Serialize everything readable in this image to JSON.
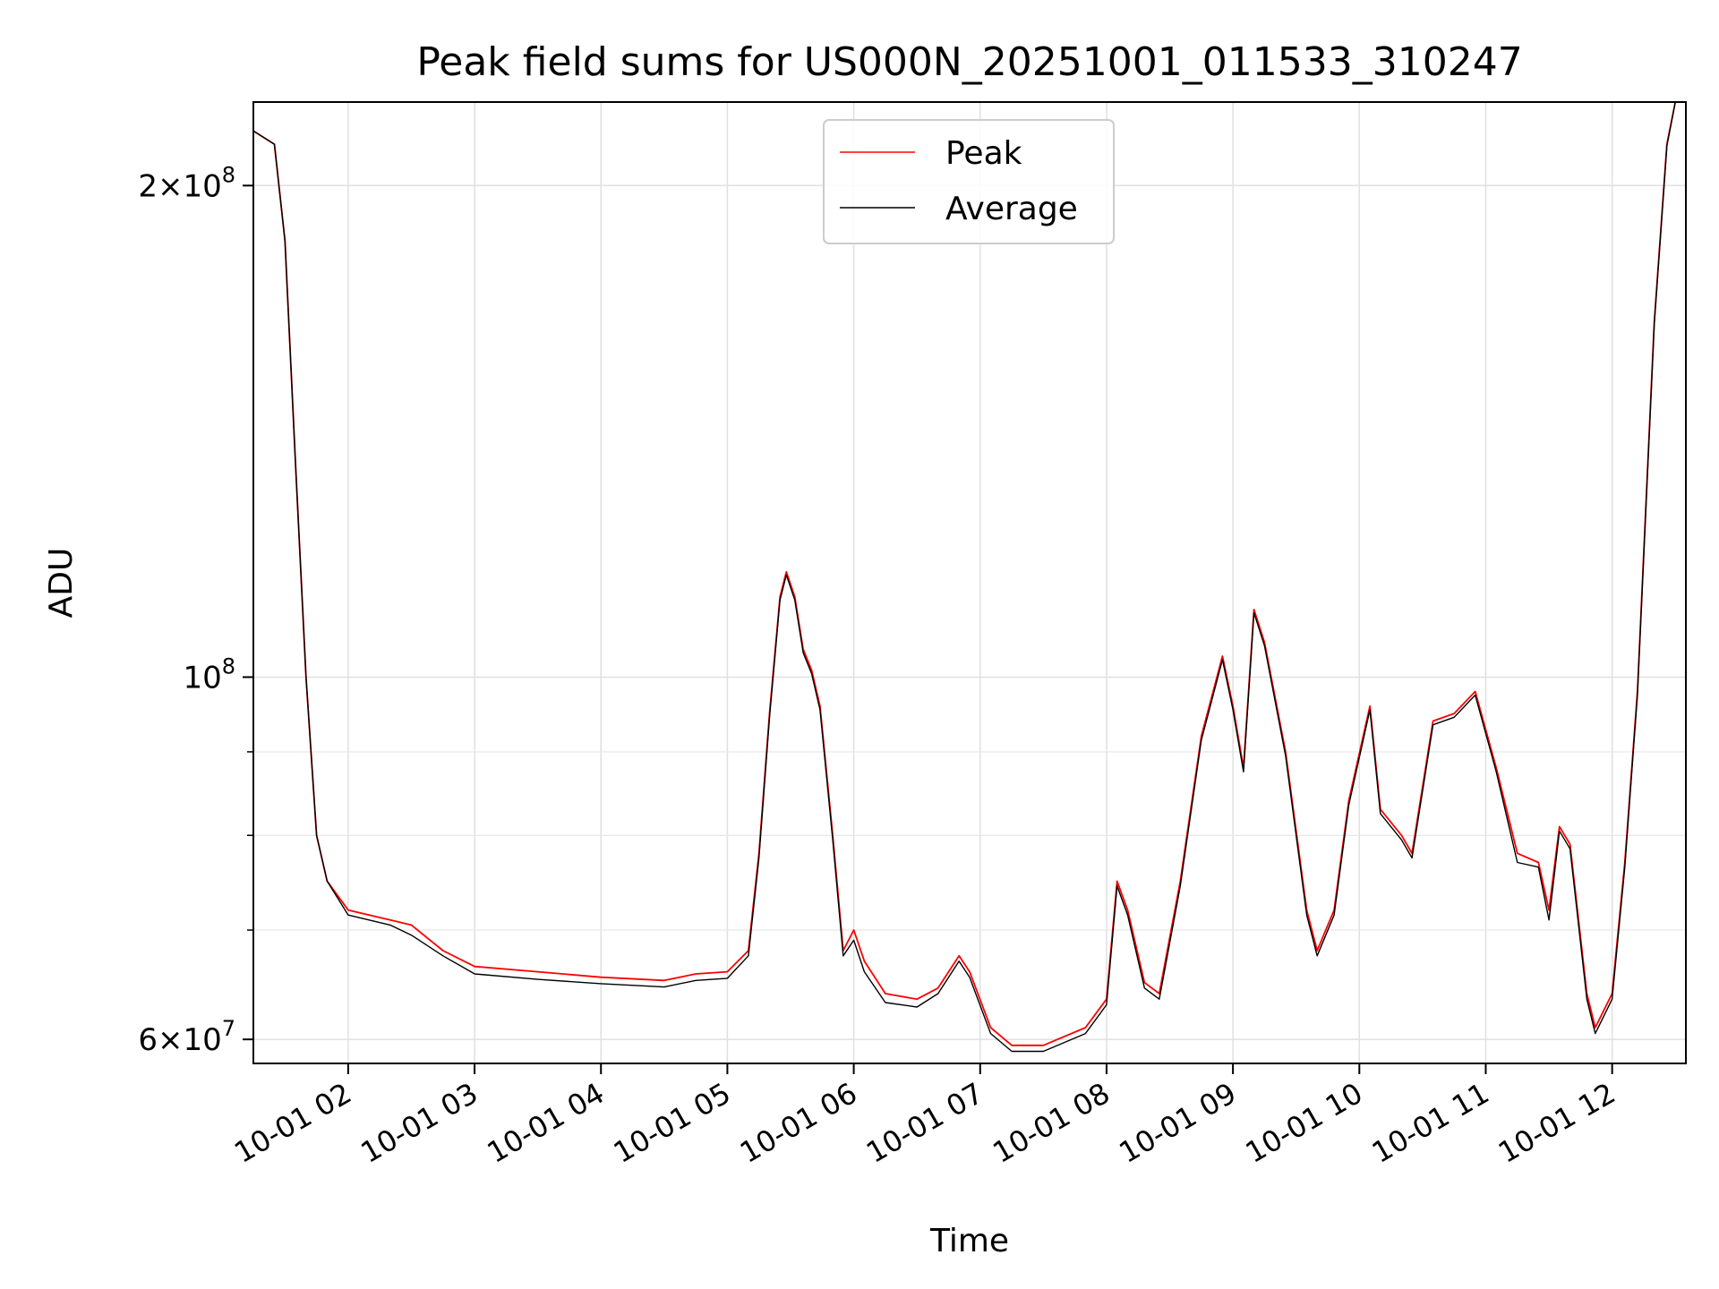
{
  "chart_data": {
    "type": "line",
    "title": "Peak field sums for US000N_20251001_011533_310247",
    "xlabel": "Time",
    "ylabel": "ADU",
    "yscale": "log",
    "grid": true,
    "legend_position": "top-center",
    "xlim": [
      "2025-10-01 01:15",
      "2025-10-01 12:35"
    ],
    "ylim": [
      58000000,
      225000000
    ],
    "x_ticks": [
      {
        "t": "2025-10-01 02:00",
        "label": "10-01 02"
      },
      {
        "t": "2025-10-01 03:00",
        "label": "10-01 03"
      },
      {
        "t": "2025-10-01 04:00",
        "label": "10-01 04"
      },
      {
        "t": "2025-10-01 05:00",
        "label": "10-01 05"
      },
      {
        "t": "2025-10-01 06:00",
        "label": "10-01 06"
      },
      {
        "t": "2025-10-01 07:00",
        "label": "10-01 07"
      },
      {
        "t": "2025-10-01 08:00",
        "label": "10-01 08"
      },
      {
        "t": "2025-10-01 09:00",
        "label": "10-01 09"
      },
      {
        "t": "2025-10-01 10:00",
        "label": "10-01 10"
      },
      {
        "t": "2025-10-01 11:00",
        "label": "10-01 11"
      },
      {
        "t": "2025-10-01 12:00",
        "label": "10-01 12"
      }
    ],
    "y_ticks_major": [
      {
        "value": 60000000,
        "base": "6×10",
        "exp": "7"
      },
      {
        "value": 100000000,
        "base": "10",
        "exp": "8"
      },
      {
        "value": 200000000,
        "base": "2×10",
        "exp": "8"
      }
    ],
    "y_ticks_minor": [
      70000000,
      80000000,
      90000000
    ],
    "series": [
      {
        "name": "Peak",
        "color": "#ff0000",
        "points": [
          [
            "2025-10-01 01:15",
            216000000
          ],
          [
            "2025-10-01 01:20",
            214000000
          ],
          [
            "2025-10-01 01:25",
            212000000
          ],
          [
            "2025-10-01 01:30",
            185000000
          ],
          [
            "2025-10-01 01:35",
            135000000
          ],
          [
            "2025-10-01 01:40",
            100000000
          ],
          [
            "2025-10-01 01:45",
            80000000
          ],
          [
            "2025-10-01 01:50",
            75000000
          ],
          [
            "2025-10-01 02:00",
            72000000
          ],
          [
            "2025-10-01 02:20",
            71000000
          ],
          [
            "2025-10-01 02:30",
            70500000
          ],
          [
            "2025-10-01 02:45",
            68000000
          ],
          [
            "2025-10-01 03:00",
            66500000
          ],
          [
            "2025-10-01 03:30",
            66000000
          ],
          [
            "2025-10-01 04:00",
            65500000
          ],
          [
            "2025-10-01 04:30",
            65200000
          ],
          [
            "2025-10-01 04:45",
            65800000
          ],
          [
            "2025-10-01 05:00",
            66000000
          ],
          [
            "2025-10-01 05:10",
            68000000
          ],
          [
            "2025-10-01 05:15",
            78000000
          ],
          [
            "2025-10-01 05:20",
            95000000
          ],
          [
            "2025-10-01 05:25",
            112000000
          ],
          [
            "2025-10-01 05:28",
            116000000
          ],
          [
            "2025-10-01 05:32",
            112000000
          ],
          [
            "2025-10-01 05:36",
            104000000
          ],
          [
            "2025-10-01 05:40",
            101000000
          ],
          [
            "2025-10-01 05:44",
            96000000
          ],
          [
            "2025-10-01 05:50",
            80000000
          ],
          [
            "2025-10-01 05:55",
            68000000
          ],
          [
            "2025-10-01 06:00",
            70000000
          ],
          [
            "2025-10-01 06:05",
            67000000
          ],
          [
            "2025-10-01 06:15",
            64000000
          ],
          [
            "2025-10-01 06:30",
            63500000
          ],
          [
            "2025-10-01 06:40",
            64500000
          ],
          [
            "2025-10-01 06:50",
            67500000
          ],
          [
            "2025-10-01 06:55",
            66000000
          ],
          [
            "2025-10-01 07:05",
            61000000
          ],
          [
            "2025-10-01 07:15",
            59500000
          ],
          [
            "2025-10-01 07:30",
            59500000
          ],
          [
            "2025-10-01 07:50",
            61000000
          ],
          [
            "2025-10-01 08:00",
            63500000
          ],
          [
            "2025-10-01 08:05",
            75000000
          ],
          [
            "2025-10-01 08:10",
            72000000
          ],
          [
            "2025-10-01 08:18",
            65000000
          ],
          [
            "2025-10-01 08:25",
            64000000
          ],
          [
            "2025-10-01 08:35",
            75000000
          ],
          [
            "2025-10-01 08:45",
            92000000
          ],
          [
            "2025-10-01 08:55",
            103000000
          ],
          [
            "2025-10-01 09:00",
            96000000
          ],
          [
            "2025-10-01 09:05",
            88000000
          ],
          [
            "2025-10-01 09:10",
            110000000
          ],
          [
            "2025-10-01 09:15",
            105000000
          ],
          [
            "2025-10-01 09:25",
            90000000
          ],
          [
            "2025-10-01 09:35",
            72000000
          ],
          [
            "2025-10-01 09:40",
            68000000
          ],
          [
            "2025-10-01 09:48",
            72000000
          ],
          [
            "2025-10-01 09:55",
            84000000
          ],
          [
            "2025-10-01 10:05",
            96000000
          ],
          [
            "2025-10-01 10:10",
            83000000
          ],
          [
            "2025-10-01 10:20",
            80000000
          ],
          [
            "2025-10-01 10:25",
            78000000
          ],
          [
            "2025-10-01 10:35",
            94000000
          ],
          [
            "2025-10-01 10:45",
            95000000
          ],
          [
            "2025-10-01 10:55",
            98000000
          ],
          [
            "2025-10-01 11:05",
            88000000
          ],
          [
            "2025-10-01 11:15",
            78000000
          ],
          [
            "2025-10-01 11:25",
            77000000
          ],
          [
            "2025-10-01 11:30",
            72000000
          ],
          [
            "2025-10-01 11:35",
            81000000
          ],
          [
            "2025-10-01 11:40",
            79000000
          ],
          [
            "2025-10-01 11:48",
            64000000
          ],
          [
            "2025-10-01 11:52",
            61000000
          ],
          [
            "2025-10-01 12:00",
            64000000
          ],
          [
            "2025-10-01 12:06",
            77000000
          ],
          [
            "2025-10-01 12:12",
            98000000
          ],
          [
            "2025-10-01 12:20",
            165000000
          ],
          [
            "2025-10-01 12:26",
            212000000
          ],
          [
            "2025-10-01 12:30",
            225000000
          ]
        ]
      },
      {
        "name": "Average",
        "color": "#000000",
        "points": [
          [
            "2025-10-01 01:15",
            216000000
          ],
          [
            "2025-10-01 01:20",
            214000000
          ],
          [
            "2025-10-01 01:25",
            212000000
          ],
          [
            "2025-10-01 01:30",
            185000000
          ],
          [
            "2025-10-01 01:35",
            135000000
          ],
          [
            "2025-10-01 01:40",
            100000000
          ],
          [
            "2025-10-01 01:45",
            80000000
          ],
          [
            "2025-10-01 01:50",
            75000000
          ],
          [
            "2025-10-01 02:00",
            71500000
          ],
          [
            "2025-10-01 02:20",
            70500000
          ],
          [
            "2025-10-01 02:30",
            69500000
          ],
          [
            "2025-10-01 02:45",
            67500000
          ],
          [
            "2025-10-01 03:00",
            65800000
          ],
          [
            "2025-10-01 03:30",
            65300000
          ],
          [
            "2025-10-01 04:00",
            64900000
          ],
          [
            "2025-10-01 04:30",
            64600000
          ],
          [
            "2025-10-01 04:45",
            65200000
          ],
          [
            "2025-10-01 05:00",
            65400000
          ],
          [
            "2025-10-01 05:10",
            67500000
          ],
          [
            "2025-10-01 05:15",
            77500000
          ],
          [
            "2025-10-01 05:20",
            94500000
          ],
          [
            "2025-10-01 05:25",
            111500000
          ],
          [
            "2025-10-01 05:28",
            115500000
          ],
          [
            "2025-10-01 05:32",
            111500000
          ],
          [
            "2025-10-01 05:36",
            103500000
          ],
          [
            "2025-10-01 05:40",
            100500000
          ],
          [
            "2025-10-01 05:44",
            95500000
          ],
          [
            "2025-10-01 05:50",
            79500000
          ],
          [
            "2025-10-01 05:55",
            67500000
          ],
          [
            "2025-10-01 06:00",
            69000000
          ],
          [
            "2025-10-01 06:05",
            66000000
          ],
          [
            "2025-10-01 06:15",
            63200000
          ],
          [
            "2025-10-01 06:30",
            62800000
          ],
          [
            "2025-10-01 06:40",
            64000000
          ],
          [
            "2025-10-01 06:50",
            67000000
          ],
          [
            "2025-10-01 06:55",
            65500000
          ],
          [
            "2025-10-01 07:05",
            60500000
          ],
          [
            "2025-10-01 07:15",
            59000000
          ],
          [
            "2025-10-01 07:30",
            59000000
          ],
          [
            "2025-10-01 07:50",
            60500000
          ],
          [
            "2025-10-01 08:00",
            63000000
          ],
          [
            "2025-10-01 08:05",
            74500000
          ],
          [
            "2025-10-01 08:10",
            71500000
          ],
          [
            "2025-10-01 08:18",
            64500000
          ],
          [
            "2025-10-01 08:25",
            63500000
          ],
          [
            "2025-10-01 08:35",
            74500000
          ],
          [
            "2025-10-01 08:45",
            91500000
          ],
          [
            "2025-10-01 08:55",
            102500000
          ],
          [
            "2025-10-01 09:00",
            95500000
          ],
          [
            "2025-10-01 09:05",
            87500000
          ],
          [
            "2025-10-01 09:10",
            109500000
          ],
          [
            "2025-10-01 09:15",
            104500000
          ],
          [
            "2025-10-01 09:25",
            89500000
          ],
          [
            "2025-10-01 09:35",
            71500000
          ],
          [
            "2025-10-01 09:40",
            67500000
          ],
          [
            "2025-10-01 09:48",
            71500000
          ],
          [
            "2025-10-01 09:55",
            83500000
          ],
          [
            "2025-10-01 10:05",
            95500000
          ],
          [
            "2025-10-01 10:10",
            82500000
          ],
          [
            "2025-10-01 10:20",
            79500000
          ],
          [
            "2025-10-01 10:25",
            77500000
          ],
          [
            "2025-10-01 10:35",
            93500000
          ],
          [
            "2025-10-01 10:45",
            94500000
          ],
          [
            "2025-10-01 10:55",
            97500000
          ],
          [
            "2025-10-01 11:05",
            87500000
          ],
          [
            "2025-10-01 11:15",
            77000000
          ],
          [
            "2025-10-01 11:25",
            76500000
          ],
          [
            "2025-10-01 11:30",
            71000000
          ],
          [
            "2025-10-01 11:35",
            80500000
          ],
          [
            "2025-10-01 11:40",
            78500000
          ],
          [
            "2025-10-01 11:48",
            63500000
          ],
          [
            "2025-10-01 11:52",
            60500000
          ],
          [
            "2025-10-01 12:00",
            63500000
          ],
          [
            "2025-10-01 12:06",
            76500000
          ],
          [
            "2025-10-01 12:12",
            97500000
          ],
          [
            "2025-10-01 12:20",
            164500000
          ],
          [
            "2025-10-01 12:26",
            211500000
          ],
          [
            "2025-10-01 12:30",
            225000000
          ]
        ]
      }
    ]
  }
}
